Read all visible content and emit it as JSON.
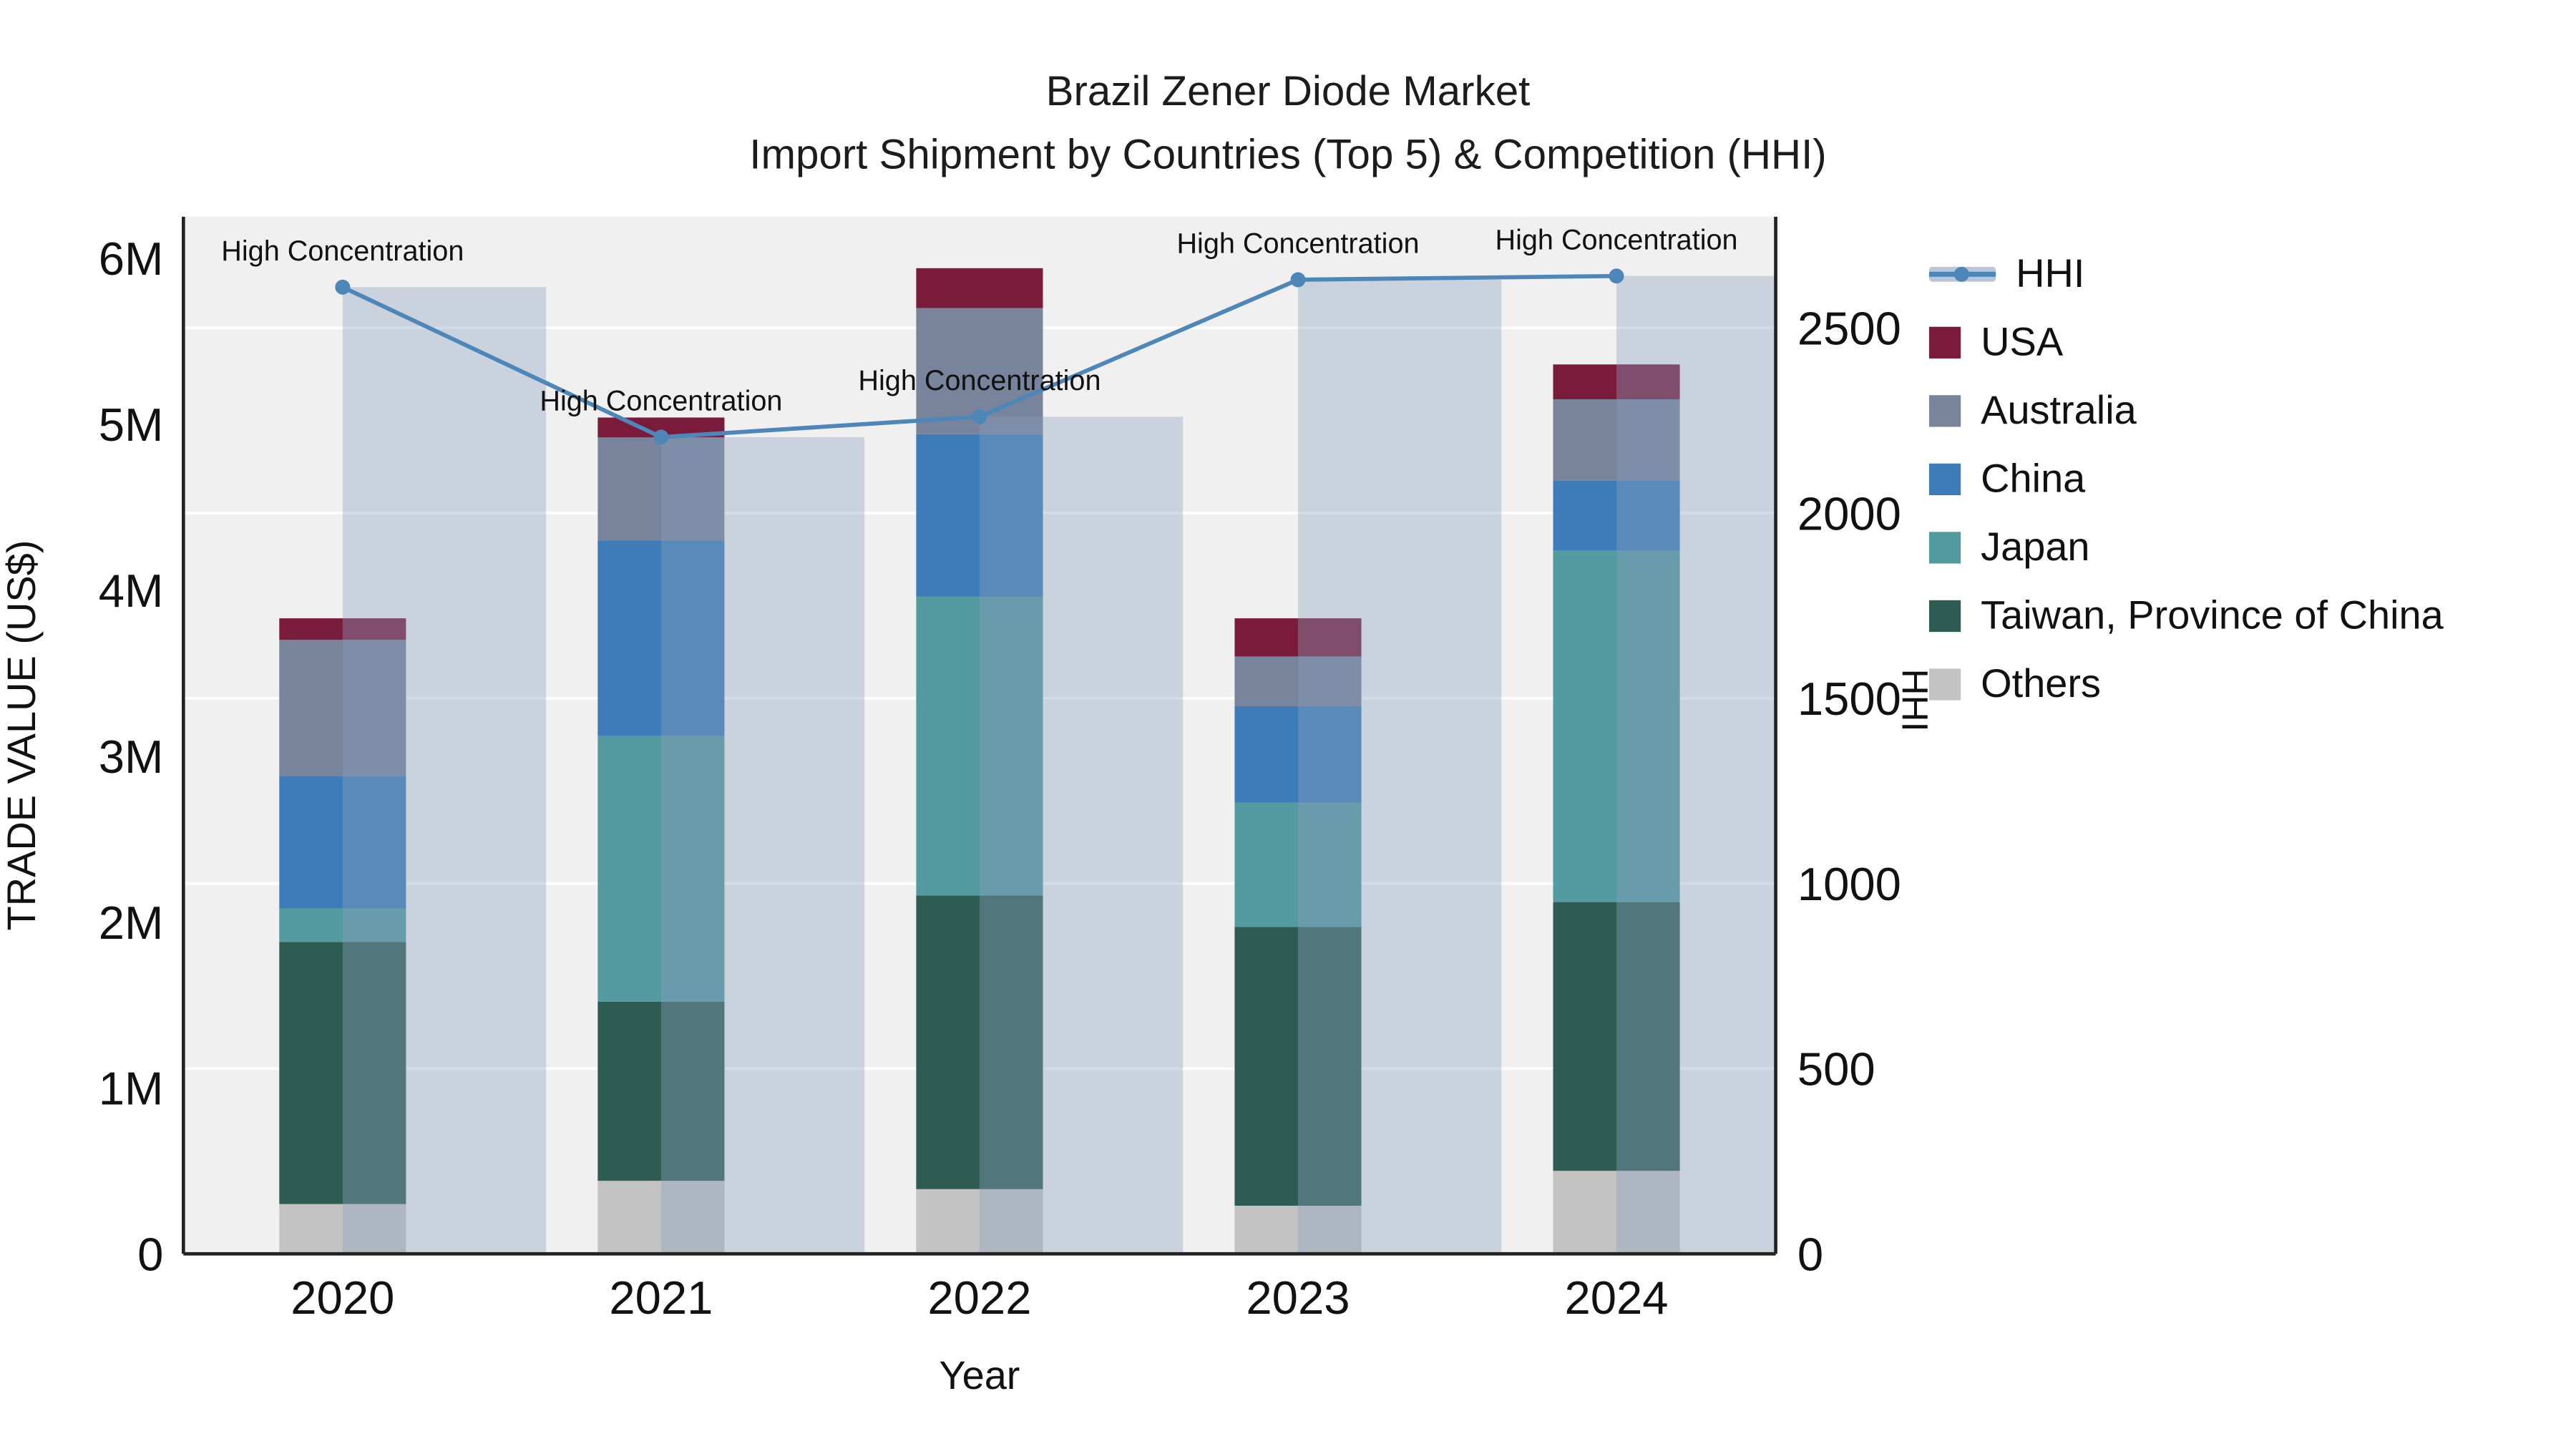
{
  "chart_data": {
    "type": "bar",
    "variant": "stacked-bars-with-hhi-line",
    "title": "Brazil Zener Diode Market",
    "subtitle": "Import Shipment by Countries (Top 5) & Competition (HHI)",
    "xlabel": "Year",
    "categories": [
      "2020",
      "2021",
      "2022",
      "2023",
      "2024"
    ],
    "series": [
      {
        "name": "Others",
        "color": "#c3c3c3",
        "values": [
          300000,
          440000,
          390000,
          290000,
          500000
        ]
      },
      {
        "name": "Taiwan, Province of China",
        "color": "#2e5c53",
        "values": [
          1580000,
          1080000,
          1770000,
          1680000,
          1620000
        ]
      },
      {
        "name": "Japan",
        "color": "#549aa1",
        "values": [
          200000,
          1600000,
          1800000,
          750000,
          2120000
        ]
      },
      {
        "name": "China",
        "color": "#3d7cb8",
        "values": [
          800000,
          1180000,
          980000,
          580000,
          420000
        ]
      },
      {
        "name": "Australia",
        "color": "#78849c",
        "values": [
          820000,
          620000,
          760000,
          300000,
          490000
        ]
      },
      {
        "name": "USA",
        "color": "#7a1b3b",
        "values": [
          130000,
          120000,
          240000,
          230000,
          210000
        ]
      }
    ],
    "line_series": {
      "name": "HHI",
      "axis": "right",
      "color": "#4d86b8",
      "band_color": "rgba(139,160,190,0.38)",
      "legend_band_color": "rgba(139,160,190,0.6)",
      "values": [
        2610,
        2205,
        2260,
        2630,
        2640
      ]
    },
    "annotations": [
      "High Concentration",
      "High Concentration",
      "High Concentration",
      "High Concentration",
      "High Concentration"
    ],
    "axes": {
      "left": {
        "label": "TRADE VALUE (US$)",
        "range": [
          0,
          6250000
        ],
        "ticks": [
          {
            "v": 0,
            "t": "0"
          },
          {
            "v": 1000000,
            "t": "1M"
          },
          {
            "v": 2000000,
            "t": "2M"
          },
          {
            "v": 3000000,
            "t": "3M"
          },
          {
            "v": 4000000,
            "t": "4M"
          },
          {
            "v": 5000000,
            "t": "5M"
          },
          {
            "v": 6000000,
            "t": "6M"
          }
        ]
      },
      "right": {
        "label": "HHI",
        "range": [
          0,
          2800
        ],
        "ticks": [
          {
            "v": 0,
            "t": "0"
          },
          {
            "v": 500,
            "t": "500"
          },
          {
            "v": 1000,
            "t": "1000"
          },
          {
            "v": 1500,
            "t": "1500"
          },
          {
            "v": 2000,
            "t": "2000"
          },
          {
            "v": 2500,
            "t": "2500"
          }
        ]
      }
    },
    "legend": {
      "position": "right",
      "items": [
        {
          "label": "HHI",
          "type": "line",
          "color": "#4d86b8"
        },
        {
          "label": "USA",
          "type": "square",
          "color": "#7a1b3b"
        },
        {
          "label": "Australia",
          "type": "square",
          "color": "#78849c"
        },
        {
          "label": "China",
          "type": "square",
          "color": "#3d7cb8"
        },
        {
          "label": "Japan",
          "type": "square",
          "color": "#549aa1"
        },
        {
          "label": "Taiwan, Province of China",
          "type": "square",
          "color": "#2e5c53"
        },
        {
          "label": "Others",
          "type": "square",
          "color": "#c3c3c3"
        }
      ]
    },
    "plot_bg": "#f0f0f0",
    "grid_color": "#ffffff",
    "axis_line_color": "#222222",
    "text_color": "#111111"
  }
}
